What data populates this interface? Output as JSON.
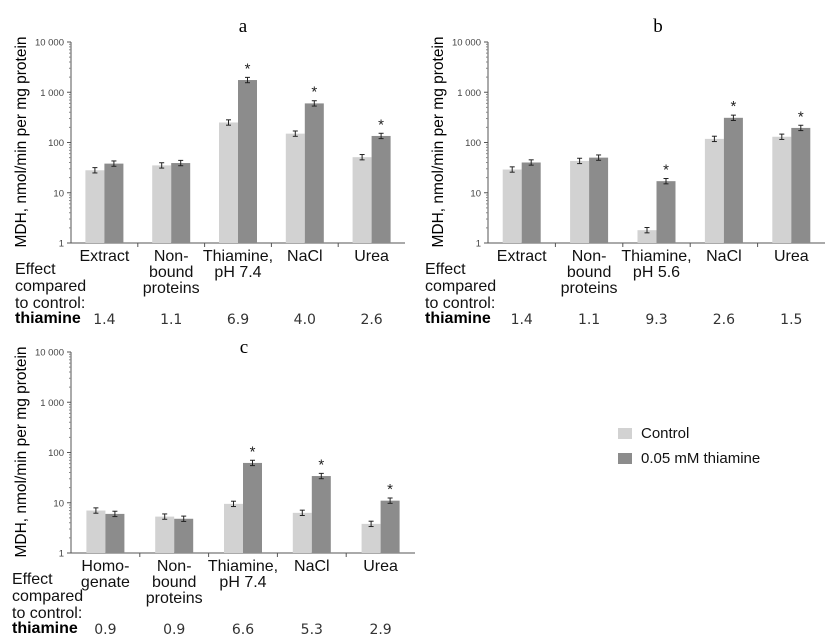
{
  "colors": {
    "control": "#d2d2d2",
    "thiamine": "#8c8c8c",
    "axis": "#555555"
  },
  "legend": {
    "placement": "right",
    "items": [
      {
        "label": "Control",
        "color": "#d2d2d2"
      },
      {
        "label": "0.05 mM thiamine",
        "color": "#8c8c8c"
      }
    ]
  },
  "chart_data": [
    {
      "type": "bar",
      "title": "a",
      "ylabel": "MDH, nmol/min per mg protein",
      "yscale": "log",
      "ylim": [
        1,
        10000
      ],
      "yticks": [
        "1",
        "10",
        "100",
        "1 000",
        "10 000"
      ],
      "grid": false,
      "categories": [
        [
          "Extract"
        ],
        [
          "Non-",
          "bound",
          "proteins"
        ],
        [
          "Thiamine,",
          "pH 7.4"
        ],
        [
          "NaCl"
        ],
        [
          "Urea"
        ]
      ],
      "series": [
        {
          "name": "Control",
          "values": [
            28,
            35,
            250,
            150,
            51
          ]
        },
        {
          "name": "0.05 mM thiamine",
          "values": [
            38,
            39,
            1750,
            600,
            135
          ]
        }
      ],
      "significant": [
        false,
        false,
        true,
        true,
        true
      ],
      "effect_label": [
        "Effect",
        "compared",
        "to control:"
      ],
      "effect_row_label": "thiamine",
      "effect_values": [
        "1.4",
        "1.1",
        "6.9",
        "4.0",
        "2.6"
      ]
    },
    {
      "type": "bar",
      "title": "b",
      "ylabel": "MDH, nmol/min per mg protein",
      "yscale": "log",
      "ylim": [
        1,
        10000
      ],
      "yticks": [
        "1",
        "10",
        "100",
        "1 000",
        "10 000"
      ],
      "grid": false,
      "categories": [
        [
          "Extract"
        ],
        [
          "Non-",
          "bound",
          "proteins"
        ],
        [
          "Thiamine,",
          "pH 5.6"
        ],
        [
          "NaCl"
        ],
        [
          "Urea"
        ]
      ],
      "series": [
        {
          "name": "Control",
          "values": [
            29,
            43,
            1.8,
            118,
            130
          ]
        },
        {
          "name": "0.05 mM thiamine",
          "values": [
            40,
            50,
            17,
            310,
            195
          ]
        }
      ],
      "significant": [
        false,
        false,
        true,
        true,
        true
      ],
      "effect_label": [
        "Effect",
        "compared",
        "to control:"
      ],
      "effect_row_label": "thiamine",
      "effect_values": [
        "1.4",
        "1.1",
        "9.3",
        "2.6",
        "1.5"
      ]
    },
    {
      "type": "bar",
      "title": "c",
      "ylabel": "MDH, nmol/min per mg protein",
      "yscale": "log",
      "ylim": [
        1,
        10000
      ],
      "yticks": [
        "1",
        "10",
        "100",
        "1 000",
        "10 000"
      ],
      "grid": false,
      "categories": [
        [
          "Homo-",
          "genate"
        ],
        [
          "Non-",
          "bound",
          "proteins"
        ],
        [
          "Thiamine,",
          "pH 7.4"
        ],
        [
          "NaCl"
        ],
        [
          "Urea"
        ]
      ],
      "series": [
        {
          "name": "Control",
          "values": [
            7,
            5.3,
            9.5,
            6.3,
            3.8
          ]
        },
        {
          "name": "0.05 mM thiamine",
          "values": [
            6,
            4.8,
            62,
            34,
            11
          ]
        }
      ],
      "significant": [
        false,
        false,
        true,
        true,
        true
      ],
      "effect_label": [
        "Effect",
        "compared",
        "to control:"
      ],
      "effect_row_label": "thiamine",
      "effect_values": [
        "0.9",
        "0.9",
        "6.6",
        "5.3",
        "2.9"
      ]
    }
  ]
}
